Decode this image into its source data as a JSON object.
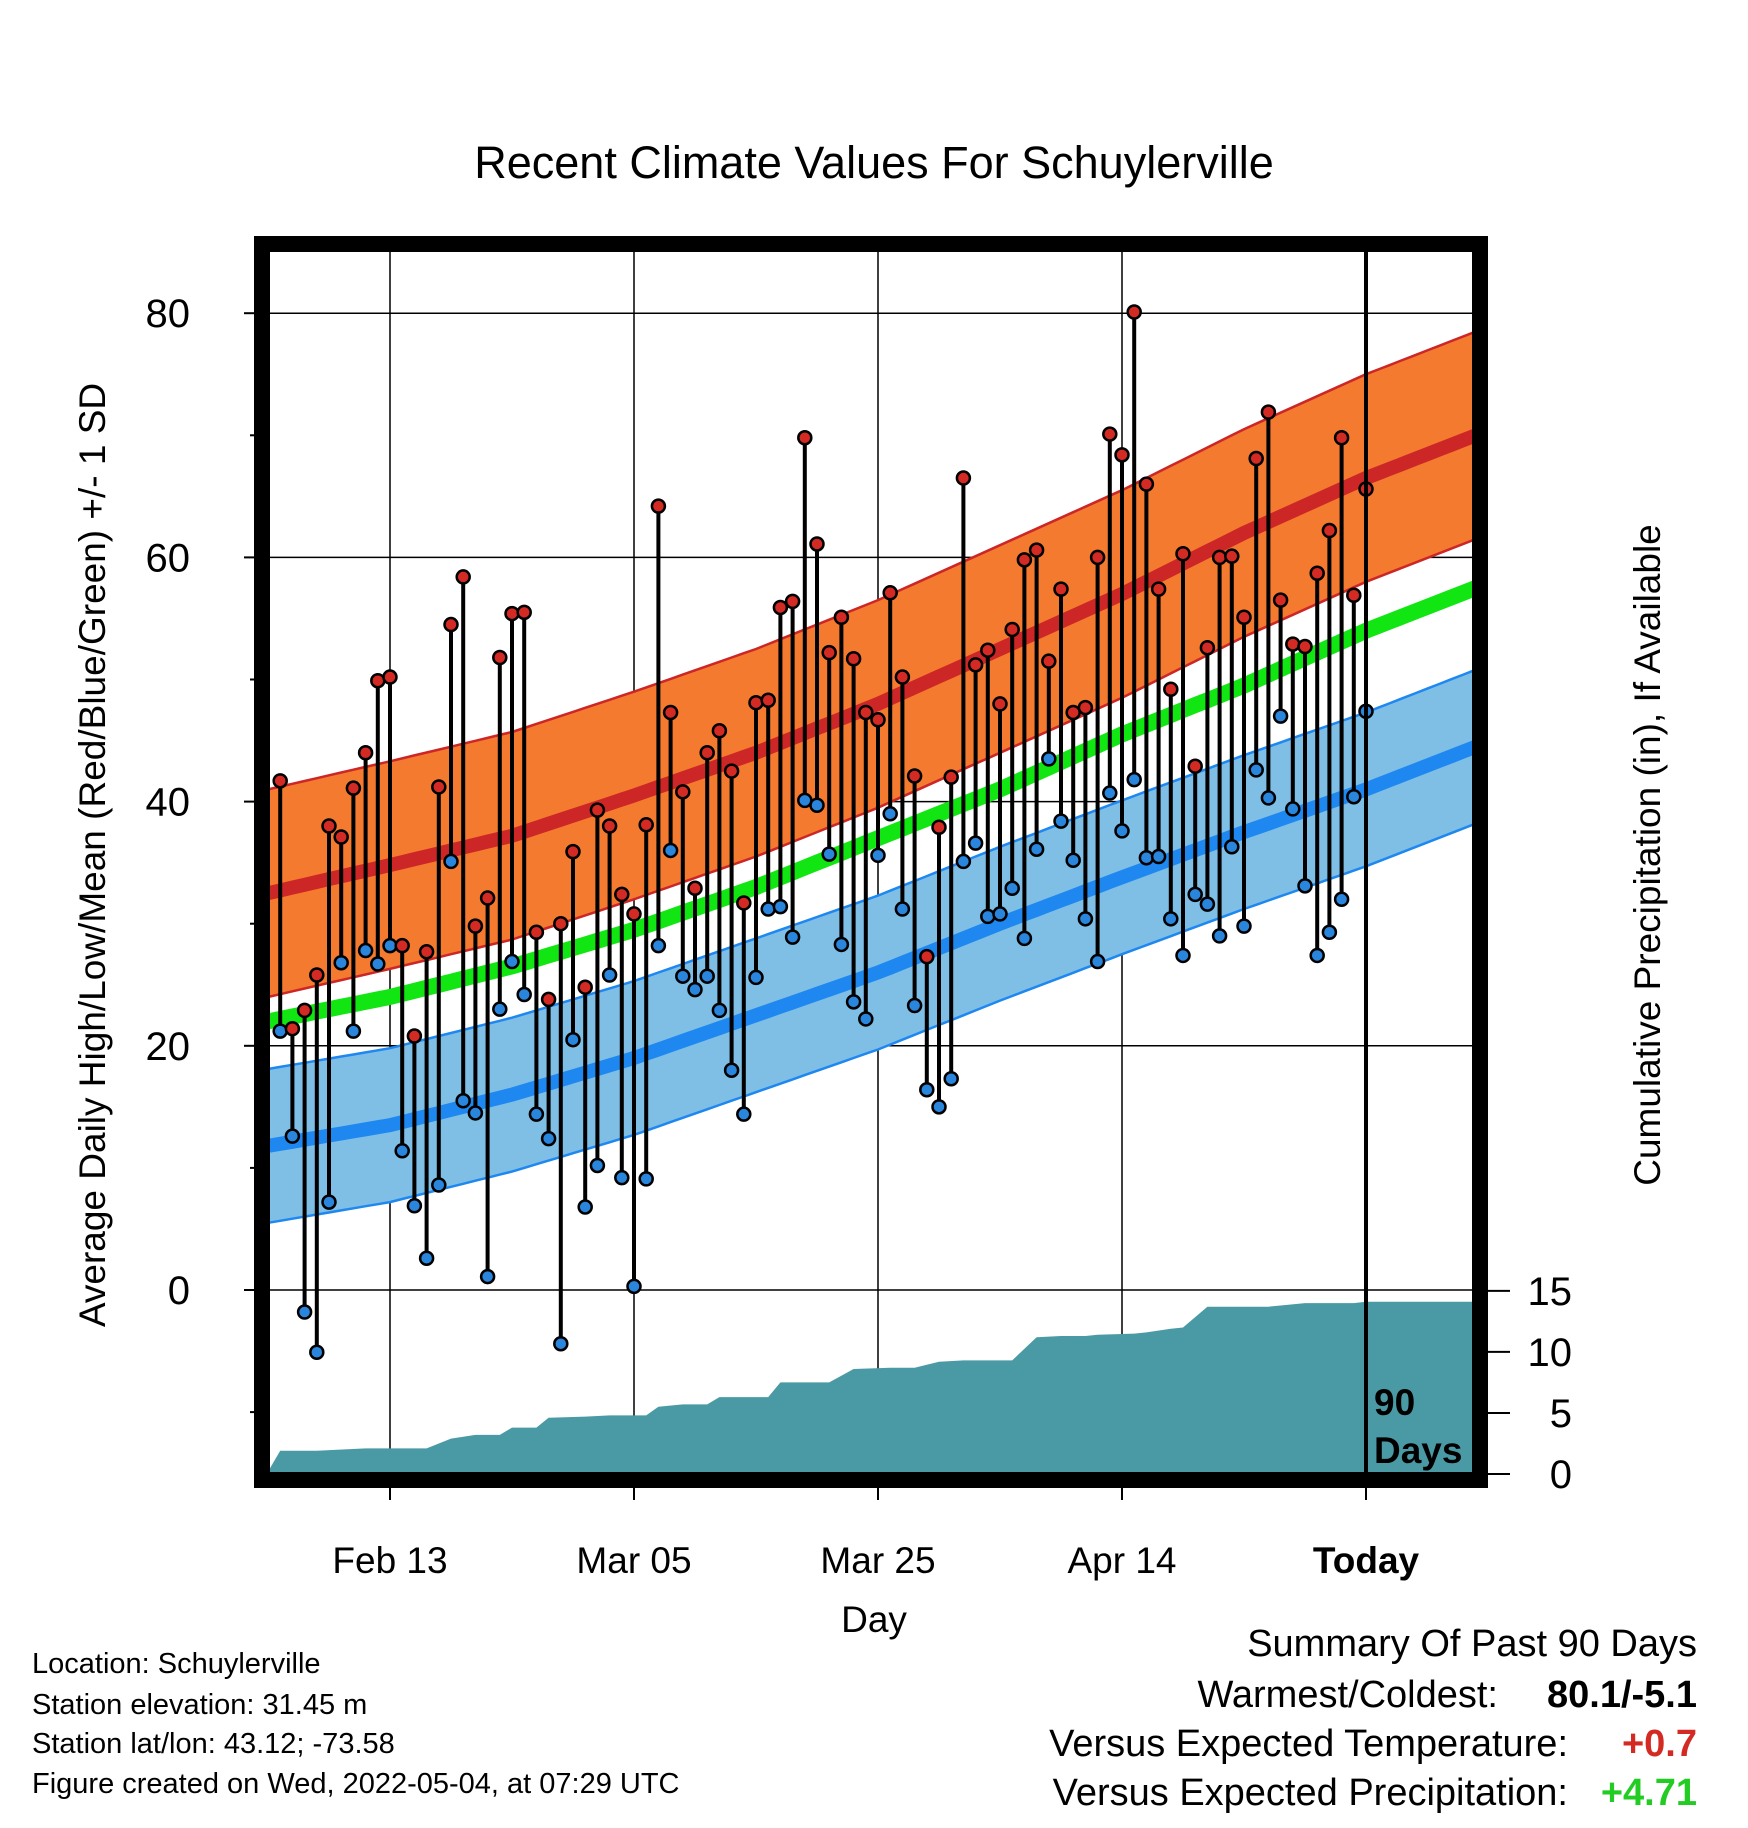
{
  "chart_data": {
    "type": "line",
    "title": "Recent Climate Values For Schuylerville",
    "xlabel": "Day",
    "ylabel": "Average Daily High/Low/Mean (Red/Blue/Green) +/- 1 SD",
    "y2label": "Cumulative Precipitation (in), If Available",
    "x_range_days": [
      -90,
      9
    ],
    "ylim": [
      -15,
      85
    ],
    "y2lim": [
      0,
      31.3
    ],
    "x_ticks": [
      {
        "day": -80,
        "label": "Feb 13"
      },
      {
        "day": -60,
        "label": "Mar 05"
      },
      {
        "day": -40,
        "label": "Mar 25"
      },
      {
        "day": -20,
        "label": "Apr 14"
      },
      {
        "day": 0,
        "label": "Today"
      }
    ],
    "y_ticks": [
      0,
      20,
      40,
      60,
      80
    ],
    "y_minor_ticks": [
      -10,
      10,
      30,
      50,
      70
    ],
    "y2_ticks": [
      0,
      5,
      10,
      15
    ],
    "today_label": "90\nDays",
    "grid": true,
    "colors": {
      "high_band": "#f47a30",
      "high_mean": "#cc2626",
      "low_band": "#7fbfe6",
      "low_mean": "#1e88f0",
      "mean": "#12e612",
      "precip": "#4a9aa5",
      "high_dot": "#d42a24",
      "low_dot": "#2a86dc"
    },
    "normals": {
      "days": [
        -90,
        -80,
        -70,
        -60,
        -50,
        -40,
        -30,
        -20,
        -10,
        0,
        9
      ],
      "high_mean": [
        32.5,
        34.8,
        37.2,
        40.5,
        44.0,
        48.0,
        52.5,
        57.0,
        62.0,
        66.5,
        70.0
      ],
      "high_sd": 8.5,
      "low_mean": [
        11.8,
        13.5,
        16.0,
        19.0,
        22.5,
        26.0,
        30.0,
        33.8,
        37.5,
        41.0,
        44.5
      ],
      "low_sd": 6.3,
      "mean": [
        22.0,
        24.0,
        26.5,
        29.5,
        33.0,
        37.0,
        41.0,
        45.5,
        49.5,
        54.0,
        57.5
      ]
    },
    "series": [
      {
        "name": "High",
        "values": [
          41.7,
          21.4,
          22.9,
          25.8,
          38.0,
          37.1,
          41.1,
          44.0,
          49.9,
          50.2,
          28.2,
          20.8,
          27.7,
          41.2,
          54.5,
          58.4,
          29.8,
          32.1,
          51.8,
          55.4,
          55.5,
          29.3,
          23.8,
          30.0,
          35.9,
          24.8,
          39.3,
          38.0,
          32.4,
          30.8,
          38.1,
          64.2,
          47.3,
          40.8,
          32.9,
          44.0,
          45.8,
          42.5,
          31.7,
          48.1,
          48.3,
          55.9,
          56.4,
          69.8,
          61.1,
          52.2,
          55.1,
          51.7,
          47.3,
          46.7,
          57.1,
          50.2,
          42.1,
          27.3,
          37.9,
          42.0,
          66.5,
          51.2,
          52.4,
          48.0,
          54.1,
          59.8,
          60.6,
          51.5,
          57.4,
          47.3,
          47.7,
          60.0,
          70.1,
          68.4,
          80.1,
          66.0,
          57.4,
          49.2,
          60.3,
          42.9,
          52.6,
          60.0,
          60.1,
          55.1,
          68.1,
          71.9,
          56.5,
          52.9,
          52.7,
          58.7,
          62.2,
          69.8,
          56.9,
          65.6
        ]
      },
      {
        "name": "Low",
        "values": [
          21.2,
          12.6,
          -1.8,
          -5.1,
          7.2,
          26.8,
          21.2,
          27.8,
          26.7,
          28.2,
          11.4,
          6.9,
          2.6,
          8.6,
          35.1,
          15.5,
          14.5,
          1.1,
          23.0,
          26.9,
          24.2,
          14.4,
          12.4,
          -4.4,
          20.5,
          6.8,
          10.2,
          25.8,
          9.2,
          0.3,
          9.1,
          28.2,
          36.0,
          25.7,
          24.6,
          25.7,
          22.9,
          18.0,
          14.4,
          25.6,
          31.2,
          31.4,
          28.9,
          40.1,
          39.7,
          35.7,
          28.3,
          23.6,
          22.2,
          35.6,
          39.0,
          31.2,
          23.3,
          16.4,
          15.0,
          17.3,
          35.1,
          36.6,
          30.6,
          30.8,
          32.9,
          28.8,
          36.1,
          43.5,
          38.4,
          35.2,
          30.4,
          26.9,
          40.7,
          37.6,
          41.8,
          35.4,
          35.5,
          30.4,
          27.4,
          32.4,
          31.6,
          29.0,
          36.3,
          29.8,
          42.6,
          40.3,
          47.0,
          39.4,
          33.1,
          27.4,
          29.3,
          32.0,
          40.4,
          47.4
        ]
      },
      {
        "name": "Cumulative Precipitation",
        "points": [
          [
            -90,
            0.2
          ],
          [
            -89,
            1.9
          ],
          [
            -86,
            1.9
          ],
          [
            -82,
            2.1
          ],
          [
            -77,
            2.1
          ],
          [
            -75,
            2.9
          ],
          [
            -73,
            3.2
          ],
          [
            -71,
            3.2
          ],
          [
            -70,
            3.8
          ],
          [
            -68,
            3.8
          ],
          [
            -67,
            4.6
          ],
          [
            -64,
            4.7
          ],
          [
            -62,
            4.8
          ],
          [
            -59,
            4.8
          ],
          [
            -58,
            5.5
          ],
          [
            -56,
            5.7
          ],
          [
            -54,
            5.7
          ],
          [
            -53,
            6.3
          ],
          [
            -49,
            6.3
          ],
          [
            -48,
            7.5
          ],
          [
            -44,
            7.5
          ],
          [
            -42,
            8.6
          ],
          [
            -39,
            8.7
          ],
          [
            -37,
            8.7
          ],
          [
            -35,
            9.2
          ],
          [
            -33,
            9.3
          ],
          [
            -29,
            9.3
          ],
          [
            -27,
            11.2
          ],
          [
            -25,
            11.3
          ],
          [
            -23,
            11.3
          ],
          [
            -22,
            11.4
          ],
          [
            -19,
            11.5
          ],
          [
            -18,
            11.6
          ],
          [
            -16,
            11.9
          ],
          [
            -15,
            12.0
          ],
          [
            -13,
            13.7
          ],
          [
            -8,
            13.7
          ],
          [
            -7,
            13.8
          ],
          [
            -5,
            14.0
          ],
          [
            -1,
            14.0
          ],
          [
            0,
            14.1
          ],
          [
            9,
            14.1
          ]
        ]
      }
    ]
  },
  "footer": {
    "location": "Location: Schuylerville",
    "elevation": "Station elevation: 31.45 m",
    "latlon": "Station lat/lon: 43.12; -73.58",
    "created": "Figure created on Wed, 2022-05-04, at 07:29 UTC"
  },
  "summary": {
    "heading": "Summary Of Past 90 Days",
    "warmest_label": "Warmest/Coldest:",
    "warmest_value": "80.1/-5.1",
    "temp_label": "Versus Expected Temperature:",
    "temp_value": "+0.7",
    "temp_color": "#d42a24",
    "precip_label": "Versus Expected Precipitation:",
    "precip_value": "+4.71",
    "precip_color": "#22cc22"
  }
}
